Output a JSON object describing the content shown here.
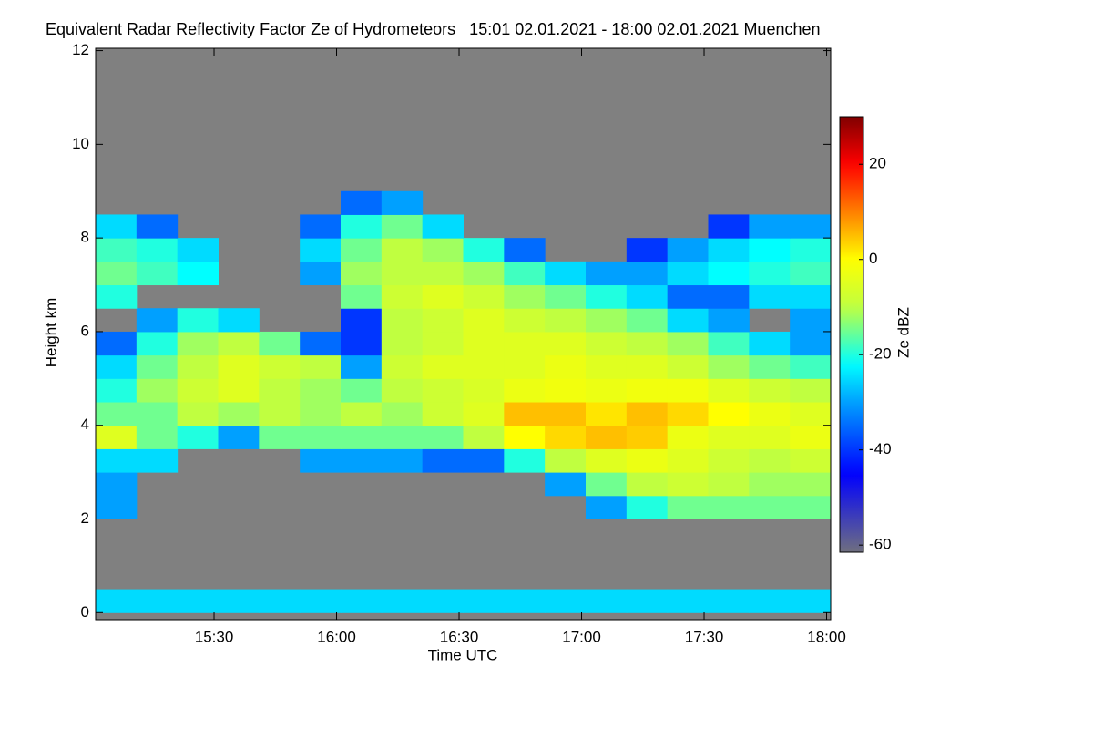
{
  "chart_data": {
    "type": "heatmap",
    "title": "Equivalent Radar Reflectivity Factor Ze of Hydrometeors   15:01 02.01.2021 - 18:00 02.01.2021 Muenchen",
    "x_label": "Time UTC",
    "y_label": "Height km",
    "colorbar_label": "Ze dBZ",
    "x": [
      901,
      911,
      921,
      931,
      941,
      951,
      961,
      971,
      981,
      991,
      1001,
      1011,
      1021,
      1031,
      1041,
      1051,
      1061,
      1071,
      1081
    ],
    "y": [
      0,
      0.5,
      1,
      1.5,
      2,
      2.5,
      3,
      3.5,
      4,
      4.5,
      5,
      5.5,
      6,
      6.5,
      7,
      7.5,
      8,
      8.5,
      9,
      9.5,
      10,
      10.5,
      11,
      11.5,
      12
    ],
    "xlim": [
      901,
      1081
    ],
    "ylim": [
      -0.15,
      12.05
    ],
    "clim": [
      -61.5,
      30
    ],
    "xticks": [
      {
        "value": 930,
        "label": "15:30"
      },
      {
        "value": 960,
        "label": "16:00"
      },
      {
        "value": 990,
        "label": "16:30"
      },
      {
        "value": 1020,
        "label": "17:00"
      },
      {
        "value": 1050,
        "label": "17:30"
      },
      {
        "value": 1080,
        "label": "18:00"
      }
    ],
    "yticks": [
      0,
      2,
      4,
      6,
      8,
      10,
      12
    ],
    "cticks": [
      -60,
      -40,
      -20,
      0,
      20
    ],
    "missing_color": "#808080",
    "z": [
      [
        -25,
        -25,
        -25,
        -25,
        -25,
        -25,
        -25,
        -25,
        -25,
        -25,
        -25,
        -25,
        -25,
        -25,
        -25,
        -25,
        -25,
        -25
      ],
      [
        null,
        null,
        null,
        null,
        null,
        null,
        null,
        null,
        null,
        null,
        null,
        null,
        null,
        null,
        null,
        null,
        null,
        null
      ],
      [
        null,
        null,
        null,
        null,
        null,
        null,
        null,
        null,
        null,
        null,
        null,
        null,
        null,
        null,
        null,
        null,
        null,
        null
      ],
      [
        null,
        null,
        null,
        null,
        null,
        null,
        null,
        null,
        null,
        null,
        null,
        null,
        null,
        null,
        null,
        null,
        null,
        null
      ],
      [
        -30,
        null,
        null,
        null,
        null,
        null,
        null,
        null,
        null,
        null,
        null,
        null,
        -30,
        -20,
        -15,
        -15,
        -15,
        -15
      ],
      [
        -30,
        null,
        null,
        null,
        null,
        null,
        null,
        null,
        null,
        null,
        null,
        -30,
        -15,
        -10,
        -8,
        -10,
        -12,
        -12
      ],
      [
        -25,
        -25,
        null,
        null,
        null,
        -30,
        -30,
        -30,
        -35,
        -35,
        -20,
        -10,
        -5,
        -3,
        -5,
        -8,
        -10,
        -8
      ],
      [
        -5,
        -15,
        -20,
        -30,
        -15,
        -15,
        -15,
        -15,
        -15,
        -10,
        0,
        3,
        5,
        4,
        -3,
        -5,
        -5,
        -3
      ],
      [
        -15,
        -15,
        -10,
        -12,
        -10,
        -12,
        -10,
        -12,
        -8,
        -5,
        5,
        5,
        2,
        5,
        3,
        0,
        -3,
        -5
      ],
      [
        -20,
        -12,
        -8,
        -5,
        -10,
        -12,
        -15,
        -10,
        -8,
        -6,
        -3,
        -2,
        -3,
        -2,
        -2,
        -5,
        -8,
        -10
      ],
      [
        -25,
        -15,
        -10,
        -5,
        -8,
        -10,
        -30,
        -8,
        -5,
        -5,
        -5,
        -3,
        -5,
        -5,
        -8,
        -12,
        -15,
        -18
      ],
      [
        -35,
        -20,
        -12,
        -10,
        -15,
        -35,
        -40,
        -10,
        -8,
        -5,
        -5,
        -5,
        -8,
        -10,
        -12,
        -18,
        -25,
        -30
      ],
      [
        null,
        -30,
        -20,
        -25,
        null,
        null,
        -40,
        -10,
        -8,
        -5,
        -8,
        -10,
        -12,
        -15,
        -25,
        -30,
        null,
        -30
      ],
      [
        -20,
        null,
        null,
        null,
        null,
        null,
        -15,
        -8,
        -5,
        -8,
        -12,
        -15,
        -20,
        -25,
        -35,
        -35,
        -25,
        -25
      ],
      [
        -15,
        -18,
        -22,
        null,
        null,
        -30,
        -12,
        -10,
        -10,
        -12,
        -18,
        -25,
        -30,
        -30,
        -25,
        -22,
        -20,
        -18
      ],
      [
        -18,
        -20,
        -25,
        null,
        null,
        -25,
        -15,
        -10,
        -12,
        -20,
        -35,
        null,
        null,
        -40,
        -30,
        -25,
        -22,
        -20
      ],
      [
        -25,
        -35,
        null,
        null,
        null,
        -35,
        -20,
        -15,
        -25,
        null,
        null,
        null,
        null,
        null,
        null,
        -40,
        -30,
        -30
      ],
      [
        null,
        null,
        null,
        null,
        null,
        null,
        -35,
        -30,
        null,
        null,
        null,
        null,
        null,
        null,
        null,
        null,
        null,
        null
      ],
      [
        null,
        null,
        null,
        null,
        null,
        null,
        null,
        null,
        null,
        null,
        null,
        null,
        null,
        null,
        null,
        null,
        null,
        null
      ],
      [
        null,
        null,
        null,
        null,
        null,
        null,
        null,
        null,
        null,
        null,
        null,
        null,
        null,
        null,
        null,
        null,
        null,
        null
      ],
      [
        null,
        null,
        null,
        null,
        null,
        null,
        null,
        null,
        null,
        null,
        null,
        null,
        null,
        null,
        null,
        null,
        null,
        null
      ],
      [
        null,
        null,
        null,
        null,
        null,
        null,
        null,
        null,
        null,
        null,
        null,
        null,
        null,
        null,
        null,
        null,
        null,
        null
      ],
      [
        null,
        null,
        null,
        null,
        null,
        null,
        null,
        null,
        null,
        null,
        null,
        null,
        null,
        null,
        null,
        null,
        null,
        null
      ],
      [
        null,
        null,
        null,
        null,
        null,
        null,
        null,
        null,
        null,
        null,
        null,
        null,
        null,
        null,
        null,
        null,
        null,
        null
      ]
    ]
  }
}
